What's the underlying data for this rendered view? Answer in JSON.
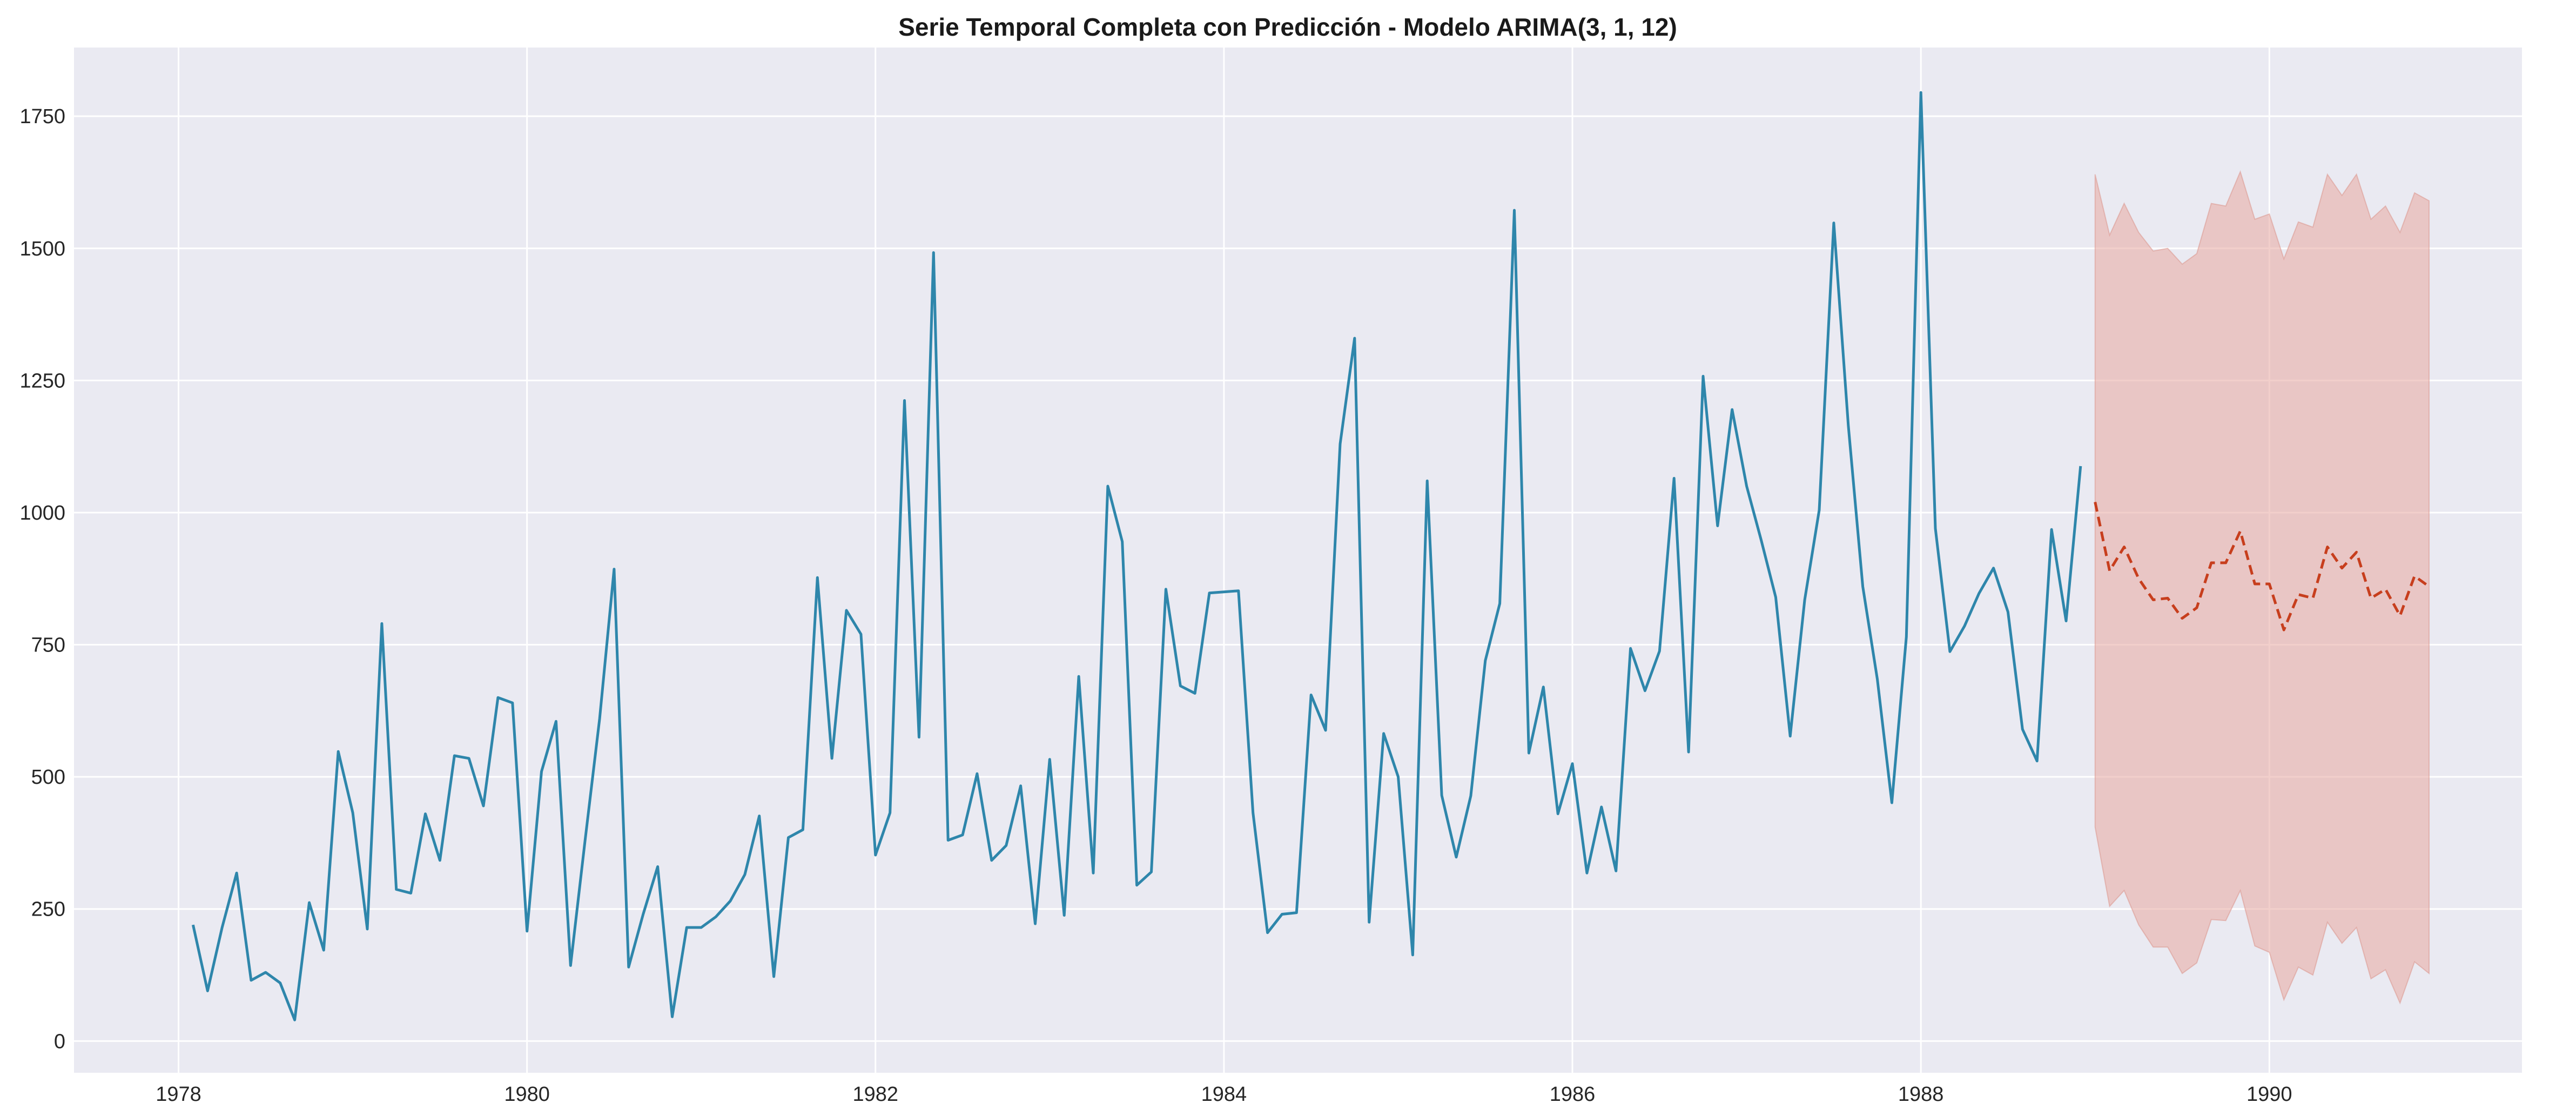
{
  "chart_data": {
    "type": "line",
    "title": "Serie Temporal Completa con Predicción - Modelo ARIMA(3, 1, 12)",
    "xlabel": "",
    "ylabel": "",
    "xlim": [
      1977.4,
      1991.45
    ],
    "ylim": [
      -60,
      1880
    ],
    "grid": true,
    "x_ticks": [
      "1978",
      "1980",
      "1982",
      "1984",
      "1986",
      "1988",
      "1990"
    ],
    "y_ticks": [
      "0",
      "250",
      "500",
      "750",
      "1000",
      "1250",
      "1500",
      "1750"
    ],
    "colors": {
      "background": "#eaeaf2",
      "observed": "#2e86ab",
      "forecast": "#c73e1d",
      "interval": "#e8a8a0"
    },
    "observed": {
      "start": "1978-02",
      "values": [
        220,
        95,
        215,
        318,
        115,
        130,
        110,
        40,
        262,
        172,
        548,
        432,
        212,
        790,
        287,
        280,
        430,
        342,
        540,
        535,
        445,
        650,
        640,
        208,
        510,
        605,
        143,
        380,
        610,
        893,
        140,
        240,
        330,
        46,
        215,
        215,
        235,
        265,
        315,
        426,
        122,
        385,
        400,
        877,
        535,
        815,
        770,
        352,
        432,
        1212,
        575,
        1492,
        380,
        390,
        506,
        342,
        370,
        483,
        222,
        533,
        238,
        690,
        318,
        1050,
        945,
        295,
        320,
        855,
        672,
        658,
        848,
        850,
        852,
        432,
        205,
        240,
        243,
        655,
        588,
        1130,
        1330,
        225,
        582,
        500,
        163,
        1060,
        465,
        348,
        464,
        720,
        828,
        1572,
        545,
        670,
        430,
        525,
        318,
        443,
        322,
        743,
        663,
        738,
        1065,
        547,
        1258,
        975,
        1195,
        1050,
        948,
        840,
        577,
        835,
        1005,
        1548,
        1165,
        860,
        685,
        451,
        765,
        1795,
        970,
        737,
        785,
        847,
        895,
        812,
        590,
        530,
        968,
        795,
        1088
      ]
    },
    "forecast": {
      "start": "1989-01",
      "values": [
        1020,
        890,
        935,
        875,
        835,
        838,
        800,
        820,
        905,
        905,
        965,
        865,
        865,
        778,
        845,
        838,
        935,
        895,
        925,
        838,
        855,
        805,
        880,
        860
      ],
      "upper": [
        1640,
        1525,
        1585,
        1530,
        1495,
        1500,
        1470,
        1490,
        1585,
        1580,
        1645,
        1555,
        1565,
        1480,
        1550,
        1540,
        1640,
        1600,
        1640,
        1555,
        1580,
        1530,
        1605,
        1590
      ],
      "lower": [
        405,
        255,
        285,
        220,
        178,
        178,
        128,
        148,
        230,
        228,
        285,
        180,
        168,
        78,
        140,
        125,
        225,
        185,
        215,
        118,
        135,
        72,
        150,
        128
      ]
    }
  }
}
